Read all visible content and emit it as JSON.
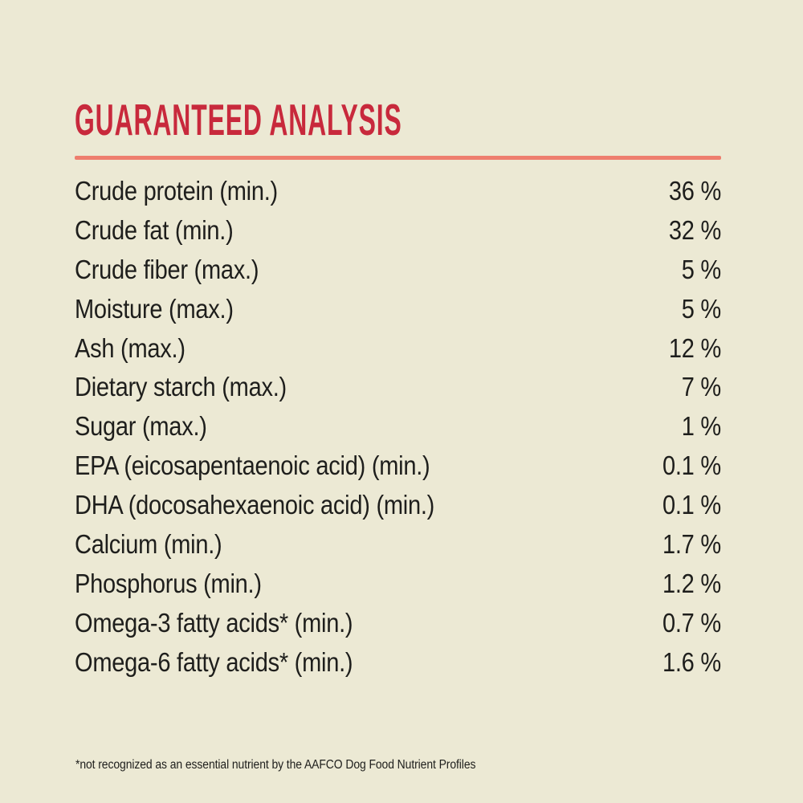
{
  "header": {
    "title": "GUARANTEED ANALYSIS"
  },
  "colors": {
    "background": "#ECE9D4",
    "title_red": "#C8293C",
    "divider_salmon": "#EE7E6E",
    "text_dark": "#1E1E1C"
  },
  "table": {
    "rows": [
      {
        "label": "Crude protein (min.)",
        "value": "36 %"
      },
      {
        "label": "Crude fat (min.)",
        "value": "32 %"
      },
      {
        "label": "Crude fiber (max.)",
        "value": "5 %"
      },
      {
        "label": "Moisture (max.)",
        "value": "5 %"
      },
      {
        "label": "Ash (max.)",
        "value": "12 %"
      },
      {
        "label": "Dietary starch (max.)",
        "value": "7 %"
      },
      {
        "label": "Sugar (max.)",
        "value": "1 %"
      },
      {
        "label": "EPA (eicosapentaenoic acid) (min.)",
        "value": "0.1 %"
      },
      {
        "label": "DHA (docosahexaenoic acid) (min.)",
        "value": "0.1 %"
      },
      {
        "label": "Calcium (min.)",
        "value": "1.7 %"
      },
      {
        "label": "Phosphorus (min.)",
        "value": "1.2 %"
      },
      {
        "label": "Omega-3 fatty acids* (min.)",
        "value": "0.7 %"
      },
      {
        "label": "Omega-6 fatty acids* (min.)",
        "value": "1.6 %"
      }
    ]
  },
  "footnote": {
    "text": "*not recognized as an essential nutrient by the AAFCO Dog Food Nutrient Profiles"
  }
}
